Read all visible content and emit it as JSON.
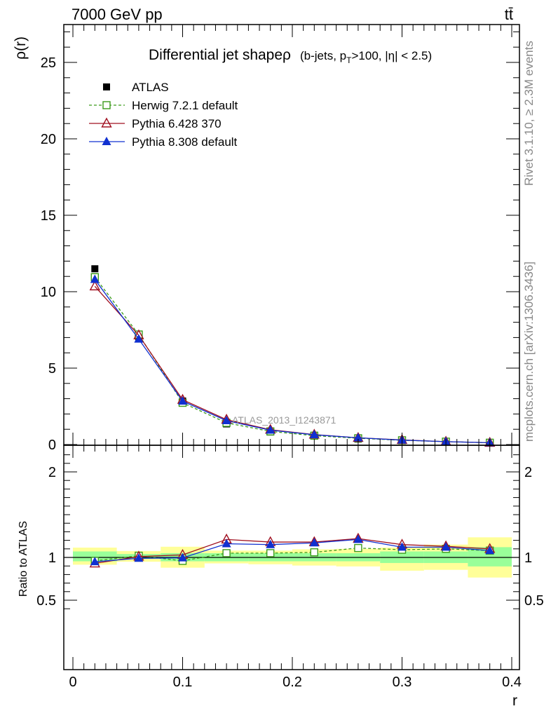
{
  "header": {
    "left": "7000 GeV pp",
    "right": "tt̄"
  },
  "side_labels": {
    "rivet": "Rivet 3.1.10, ≥ 2.3M events",
    "mcplots": "mcplots.cern.ch [arXiv:1306.3436]"
  },
  "watermark": "ATLAS_2013_I1243871",
  "chart_data": [
    {
      "type": "line",
      "title": "Differential jet shapeρ",
      "subtitle": "(b-jets, p_T>100, |η| < 2.5)",
      "xlabel": "r",
      "ylabel": "ρ(r)",
      "xlim": [
        0,
        0.4
      ],
      "ylim": [
        0,
        27.5
      ],
      "x_ticks": [
        "0",
        "0.1",
        "0.2",
        "0.3",
        "0.4"
      ],
      "y_ticks": [
        "0",
        "5",
        "10",
        "15",
        "20",
        "25"
      ],
      "legend_position": "top-left",
      "x": [
        0.02,
        0.06,
        0.1,
        0.14,
        0.18,
        0.22,
        0.26,
        0.3,
        0.34,
        0.38
      ],
      "series": [
        {
          "name": "ATLAS",
          "color": "#000000",
          "marker": "filled-square",
          "values": [
            11.5,
            7.05,
            2.85,
            1.35,
            0.82,
            0.55,
            0.36,
            0.26,
            0.17,
            0.11
          ]
        },
        {
          "name": "Herwig 7.2.1 default",
          "color": "#3a9a1a",
          "marker": "open-square",
          "dashed": true,
          "values": [
            10.95,
            7.2,
            2.73,
            1.42,
            0.86,
            0.58,
            0.41,
            0.28,
            0.19,
            0.12
          ]
        },
        {
          "name": "Pythia 6.428 370",
          "color": "#a01020",
          "marker": "open-triangle",
          "values": [
            10.35,
            7.15,
            2.93,
            1.63,
            0.97,
            0.65,
            0.44,
            0.3,
            0.19,
            0.12
          ]
        },
        {
          "name": "Pythia 8.308 default",
          "color": "#1030d0",
          "marker": "filled-triangle",
          "values": [
            10.8,
            6.9,
            2.84,
            1.56,
            0.94,
            0.64,
            0.44,
            0.29,
            0.19,
            0.12
          ]
        }
      ]
    },
    {
      "type": "line",
      "xlabel": "r",
      "ylabel": "Ratio to ATLAS",
      "xlim": [
        0,
        0.4
      ],
      "ylim": [
        0.35,
        2.3
      ],
      "x_ticks": [
        "0",
        "0.1",
        "0.2",
        "0.3",
        "0.4"
      ],
      "y_ticks": [
        "0.5",
        "1",
        "2"
      ],
      "reference_line": 1,
      "x": [
        0.02,
        0.06,
        0.1,
        0.14,
        0.18,
        0.22,
        0.26,
        0.3,
        0.34,
        0.38
      ],
      "bands": {
        "bin_edges": [
          0.0,
          0.04,
          0.08,
          0.12,
          0.16,
          0.2,
          0.24,
          0.28,
          0.32,
          0.36,
          0.4
        ],
        "stat_color": "#99ff99",
        "total_color": "#ffff99",
        "stat": [
          [
            0.955,
            1.07
          ],
          [
            0.985,
            1.04
          ],
          [
            0.955,
            1.05
          ],
          [
            0.955,
            1.05
          ],
          [
            0.955,
            1.05
          ],
          [
            0.955,
            1.05
          ],
          [
            0.955,
            1.05
          ],
          [
            0.935,
            1.07
          ],
          [
            0.935,
            1.07
          ],
          [
            0.895,
            1.12
          ]
        ],
        "total": [
          [
            0.915,
            1.115
          ],
          [
            0.95,
            1.075
          ],
          [
            0.88,
            1.125
          ],
          [
            0.93,
            1.08
          ],
          [
            0.92,
            1.08
          ],
          [
            0.905,
            1.095
          ],
          [
            0.895,
            1.1
          ],
          [
            0.845,
            1.115
          ],
          [
            0.855,
            1.15
          ],
          [
            0.765,
            1.235
          ]
        ]
      },
      "series": [
        {
          "name": "Herwig 7.2.1 default",
          "color": "#3a9a1a",
          "marker": "open-square",
          "dashed": true,
          "values": [
            0.96,
            1.02,
            0.96,
            1.05,
            1.05,
            1.06,
            1.11,
            1.09,
            1.1,
            1.08
          ]
        },
        {
          "name": "Pythia 6.428 370",
          "color": "#a01020",
          "marker": "open-triangle",
          "values": [
            0.93,
            1.01,
            1.03,
            1.21,
            1.18,
            1.18,
            1.22,
            1.15,
            1.13,
            1.1
          ]
        },
        {
          "name": "Pythia 8.308 default",
          "color": "#1030d0",
          "marker": "filled-triangle",
          "values": [
            0.95,
            0.99,
            0.995,
            1.16,
            1.15,
            1.17,
            1.21,
            1.12,
            1.12,
            1.08
          ]
        }
      ]
    }
  ]
}
